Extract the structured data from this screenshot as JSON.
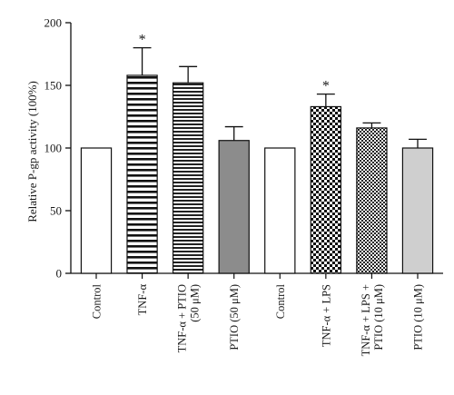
{
  "chart_data": {
    "type": "bar",
    "ylabel": "Relative P-gp activity (100%)",
    "ylim": [
      0,
      200
    ],
    "yticks": [
      0,
      50,
      100,
      150,
      200
    ],
    "grid": false,
    "legend": "none",
    "bars": [
      {
        "label": [
          "Control"
        ],
        "value": 100,
        "error": 0,
        "fill": "#ffffff",
        "pattern": "none",
        "significant": false
      },
      {
        "label": [
          "TNF-α"
        ],
        "value": 158,
        "error": 22,
        "fill": "#ffffff",
        "pattern": "horizontal-lines",
        "significant": true
      },
      {
        "label": [
          "TNF-α + PTIO",
          "(50 μM)"
        ],
        "value": 152,
        "error": 13,
        "fill": "#ffffff",
        "pattern": "horizontal-lines-dense",
        "significant": false
      },
      {
        "label": [
          "PTIO (50 μM)"
        ],
        "value": 106,
        "error": 11,
        "fill": "#8c8c8c",
        "pattern": "solid",
        "significant": false
      },
      {
        "label": [
          "Control"
        ],
        "value": 100,
        "error": 0,
        "fill": "#ffffff",
        "pattern": "none",
        "significant": false
      },
      {
        "label": [
          "TNF-α + LPS"
        ],
        "value": 133,
        "error": 10,
        "fill": "#ffffff",
        "pattern": "checker-coarse",
        "significant": true
      },
      {
        "label": [
          "TNF-α + LPS +",
          "PTIO (10 μM)"
        ],
        "value": 116,
        "error": 4,
        "fill": "#ffffff",
        "pattern": "checker-fine",
        "significant": false
      },
      {
        "label": [
          "PTIO (10 μM)"
        ],
        "value": 100,
        "error": 7,
        "fill": "#cfcfcf",
        "pattern": "solid",
        "significant": false
      }
    ],
    "significance_marker": "*"
  }
}
